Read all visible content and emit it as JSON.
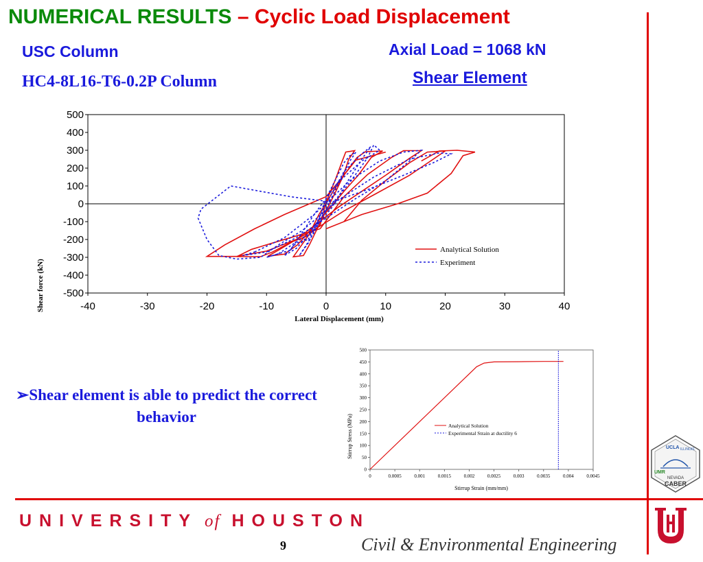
{
  "title": {
    "part1": "NUMERICAL RESULTS ",
    "part2": "– Cyclic Load Displacement"
  },
  "subtitle_left": "USC Column",
  "column_name": "HC4-8L16-T6-0.2P Column",
  "axial_load": "Axial Load = 1068 kN",
  "element_type": "Shear Element",
  "bullet": "➢Shear element is able to predict the correct behavior",
  "footer": {
    "university_left": "UNIVERSITY",
    "of": "of",
    "university_right": "HOUSTON",
    "department": "Civil & Environmental Engineering",
    "page": "9"
  },
  "logo": {
    "top": "UCLA",
    "right": "ILLINOIS",
    "left": "UMR",
    "bottom_line1": "NEVADA",
    "bottom_line2": "CABER"
  },
  "colors": {
    "analytical": "#e01010",
    "experiment": "#1a1adc",
    "accent": "#e00000",
    "title_green": "#0a8a0a"
  },
  "chart_data": [
    {
      "type": "line",
      "title": "",
      "xlabel": "Lateral Displacement (mm)",
      "ylabel": "Shear force (kN)",
      "xlim": [
        -40,
        40
      ],
      "ylim": [
        -500,
        500
      ],
      "xticks": [
        -40,
        -30,
        -20,
        -10,
        0,
        10,
        20,
        30,
        40
      ],
      "yticks": [
        500,
        400,
        300,
        200,
        100,
        0,
        -100,
        -200,
        -300,
        -400,
        -500
      ],
      "legend_position": "inside-right",
      "series": [
        {
          "name": "Analytical Solution",
          "style": "solid",
          "color": "#e01010",
          "curves": [
            [
              [
                -1,
                -120
              ],
              [
                0,
                10
              ],
              [
                1.5,
                130
              ],
              [
                2.6,
                230
              ],
              [
                3.3,
                290
              ],
              [
                4.8,
                298
              ],
              [
                3.8,
                250
              ],
              [
                2.8,
                150
              ],
              [
                1.5,
                60
              ],
              [
                0,
                -40
              ],
              [
                -1.5,
                -140
              ],
              [
                -2.8,
                -230
              ],
              [
                -3.8,
                -290
              ],
              [
                -5.5,
                -297
              ],
              [
                -4.3,
                -240
              ],
              [
                -2.8,
                -170
              ],
              [
                -1,
                -120
              ]
            ],
            [
              [
                -3,
                -180
              ],
              [
                -1.2,
                -60
              ],
              [
                1,
                60
              ],
              [
                3.2,
                170
              ],
              [
                5.2,
                260
              ],
              [
                6.6,
                292
              ],
              [
                9.5,
                296
              ],
              [
                7.6,
                260
              ],
              [
                5.4,
                160
              ],
              [
                3,
                70
              ],
              [
                0.5,
                -30
              ],
              [
                -2.2,
                -130
              ],
              [
                -4.8,
                -230
              ],
              [
                -7,
                -282
              ],
              [
                -9.8,
                -294
              ],
              [
                -8,
                -260
              ],
              [
                -5.5,
                -210
              ],
              [
                -3,
                -180
              ]
            ],
            [
              [
                -1,
                -140
              ],
              [
                3,
                40
              ],
              [
                7,
                165
              ],
              [
                11,
                260
              ],
              [
                13,
                298
              ],
              [
                16,
                298
              ],
              [
                14,
                255
              ],
              [
                10,
                160
              ],
              [
                6,
                70
              ],
              [
                2,
                -20
              ],
              [
                -1.5,
                -110
              ],
              [
                -5,
                -200
              ],
              [
                -9,
                -270
              ],
              [
                -11,
                -296
              ],
              [
                -15,
                -296
              ],
              [
                -12.5,
                -255
              ],
              [
                -9,
                -220
              ],
              [
                -5,
                -180
              ],
              [
                -1,
                -140
              ]
            ],
            [
              [
                3,
                -100
              ],
              [
                6,
                20
              ],
              [
                10,
                130
              ],
              [
                14,
                230
              ],
              [
                17,
                290
              ],
              [
                20,
                296
              ],
              [
                18,
                250
              ],
              [
                14,
                160
              ],
              [
                8,
                50
              ],
              [
                3,
                -40
              ],
              [
                -1,
                -125
              ],
              [
                -5,
                -200
              ],
              [
                -10,
                -265
              ],
              [
                -15,
                -295
              ],
              [
                -20,
                -295
              ],
              [
                -17,
                -230
              ],
              [
                -12,
                -140
              ],
              [
                -7,
                -60
              ],
              [
                0,
                40
              ],
              [
                2,
                120
              ],
              [
                5,
                245
              ],
              [
                10,
                290
              ]
            ],
            [
              [
                0,
                -140
              ],
              [
                6,
                -60
              ],
              [
                12,
                0
              ],
              [
                17,
                60
              ],
              [
                21,
                170
              ],
              [
                23,
                270
              ],
              [
                25,
                290
              ],
              [
                22,
                300
              ],
              [
                19,
                296
              ],
              [
                16,
                240
              ]
            ]
          ]
        },
        {
          "name": "Experiment",
          "style": "dashed",
          "color": "#1a1adc",
          "curves": [
            [
              [
                -2,
                -150
              ],
              [
                -1,
                -70
              ],
              [
                0,
                30
              ],
              [
                1.5,
                130
              ],
              [
                3,
                230
              ],
              [
                4,
                270
              ],
              [
                5,
                290
              ],
              [
                4,
                240
              ],
              [
                2.5,
                140
              ],
              [
                1,
                40
              ],
              [
                -0.5,
                -60
              ],
              [
                -2,
                -160
              ],
              [
                -3.5,
                -240
              ],
              [
                -4.5,
                -290
              ],
              [
                -3,
                -220
              ],
              [
                -2,
                -150
              ]
            ],
            [
              [
                -3,
                -200
              ],
              [
                0,
                0
              ],
              [
                3,
                180
              ],
              [
                6,
                280
              ],
              [
                7.5,
                320
              ],
              [
                6,
                250
              ],
              [
                3.5,
                120
              ],
              [
                1,
                -20
              ],
              [
                -2,
                -140
              ],
              [
                -5,
                -250
              ],
              [
                -7,
                -290
              ],
              [
                -5,
                -220
              ],
              [
                -3,
                -200
              ]
            ],
            [
              [
                -6,
                -260
              ],
              [
                -2,
                -60
              ],
              [
                2,
                120
              ],
              [
                6,
                240
              ],
              [
                9,
                300
              ],
              [
                8,
                330
              ],
              [
                7,
                260
              ],
              [
                4,
                120
              ],
              [
                0,
                -40
              ],
              [
                -3,
                -170
              ],
              [
                -8,
                -280
              ],
              [
                -10,
                -300
              ],
              [
                -6,
                -260
              ]
            ],
            [
              [
                -12,
                -270
              ],
              [
                -7,
                -190
              ],
              [
                -2,
                -60
              ],
              [
                4,
                130
              ],
              [
                9,
                240
              ],
              [
                13,
                290
              ],
              [
                16,
                300
              ],
              [
                14,
                240
              ],
              [
                10,
                130
              ],
              [
                5,
                30
              ],
              [
                0,
                -80
              ],
              [
                -5,
                -190
              ],
              [
                -10,
                -270
              ],
              [
                -14,
                -290
              ],
              [
                -12,
                -270
              ]
            ],
            [
              [
                -8,
                -230
              ],
              [
                -4,
                -150
              ],
              [
                2,
                20
              ],
              [
                8,
                150
              ],
              [
                14,
                250
              ],
              [
                19,
                285
              ],
              [
                21,
                280
              ],
              [
                18,
                230
              ],
              [
                13,
                160
              ],
              [
                7,
                80
              ],
              [
                1,
                10
              ],
              [
                -6,
                40
              ],
              [
                -11,
                70
              ],
              [
                -16,
                100
              ],
              [
                -21,
                -30
              ],
              [
                -21.5,
                -80
              ],
              [
                -20,
                -200
              ],
              [
                -18,
                -290
              ],
              [
                -15,
                -310
              ],
              [
                -11,
                -300
              ],
              [
                -8,
                -230
              ]
            ]
          ]
        }
      ]
    },
    {
      "type": "line",
      "title": "",
      "xlabel": "Stirrup Strain (mm/mm)",
      "ylabel": "Stirrup Stress (MPa)",
      "xlim": [
        0,
        0.0045
      ],
      "ylim": [
        0,
        500
      ],
      "xticks": [
        "0",
        "0.0005",
        "0.001",
        "0.0015",
        "0.002",
        "0.0025",
        "0.003",
        "0.0035",
        "0.004",
        "0.0045"
      ],
      "yticks": [
        "500",
        "450",
        "400",
        "350",
        "300",
        "250",
        "200",
        "150",
        "100",
        "50",
        "0"
      ],
      "legend_position": "center-right",
      "series": [
        {
          "name": "Analytical Solution",
          "style": "solid",
          "color": "#e01010",
          "x": [
            0,
            0.00215,
            0.0023,
            0.0025,
            0.003,
            0.0035,
            0.0039
          ],
          "y": [
            0,
            430,
            445,
            450,
            451,
            452,
            452
          ]
        },
        {
          "name": "Experimental Strain at ductility 6",
          "style": "dotted",
          "color": "#1a1adc",
          "x": [
            0.0038,
            0.0038
          ],
          "y": [
            0,
            500
          ]
        }
      ]
    }
  ]
}
